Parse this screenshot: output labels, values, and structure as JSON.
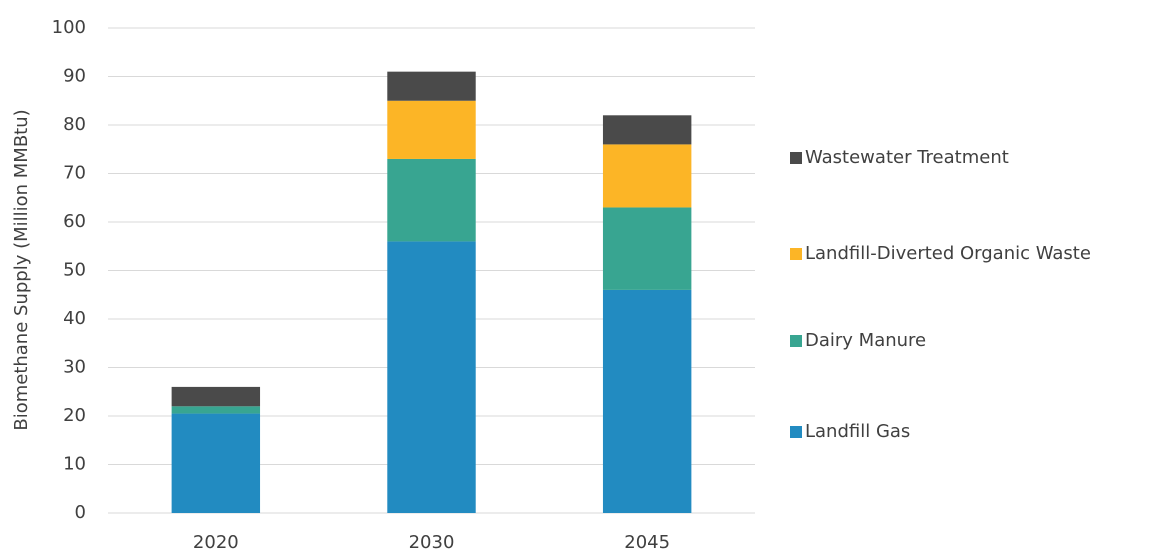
{
  "chart_data": {
    "type": "stacked_bar",
    "y_label": "Biomethane Supply (Million MMBtu)",
    "categories": [
      "2020",
      "2030",
      "2045"
    ],
    "series": [
      {
        "name": "Landfill Gas",
        "color": "#228bc1",
        "values": [
          20.5,
          56,
          46
        ]
      },
      {
        "name": "Dairy Manure",
        "color": "#38a591",
        "values": [
          1.5,
          17,
          17
        ]
      },
      {
        "name": "Landfill-Diverted Organic Waste",
        "color": "#fcb526",
        "values": [
          0,
          12,
          13
        ]
      },
      {
        "name": "Wastewater Treatment",
        "color": "#4a4a4a",
        "values": [
          4,
          6,
          6
        ]
      }
    ],
    "ylim": [
      0,
      100
    ],
    "yticks": [
      0,
      10,
      20,
      30,
      40,
      50,
      60,
      70,
      80,
      90,
      100
    ],
    "grid": true,
    "legend": "right"
  }
}
